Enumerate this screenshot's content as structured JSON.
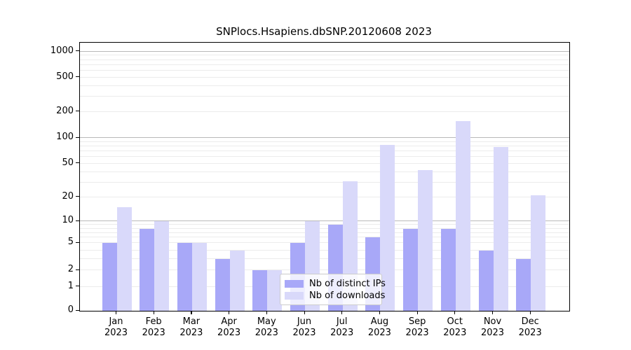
{
  "figure": {
    "title": "SNPlocs.Hsapiens.dbSNP.20120608 2023"
  },
  "chart_data": {
    "type": "bar",
    "title": "SNPlocs.Hsapiens.dbSNP.20120608 2023",
    "categories": [
      "Jan",
      "Feb",
      "Mar",
      "Apr",
      "May",
      "Jun",
      "Jul",
      "Aug",
      "Sep",
      "Oct",
      "Nov",
      "Dec"
    ],
    "category_year": "2023",
    "series": [
      {
        "name": "Nb of distinct IPs",
        "color": "#a8a8f8",
        "values": [
          5,
          8,
          5,
          3,
          2,
          5,
          9,
          6,
          8,
          8,
          4,
          3
        ]
      },
      {
        "name": "Nb of downloads",
        "color": "#d9d9fa",
        "values": [
          15,
          10,
          5,
          4,
          2,
          10,
          31,
          83,
          42,
          157,
          78,
          21
        ]
      }
    ],
    "yscale": "log1p",
    "ylim": [
      0,
      1300
    ],
    "yticks": [
      0,
      1,
      2,
      5,
      10,
      20,
      50,
      100,
      200,
      500,
      1000
    ],
    "ytick_labels": [
      "0",
      "1",
      "2",
      "5",
      "10",
      "20",
      "50",
      "100",
      "200",
      "500",
      "1000"
    ],
    "major_gridlines": [
      10,
      100,
      1000
    ],
    "minor_gridlines": [
      1,
      2,
      3,
      4,
      5,
      6,
      7,
      8,
      9,
      20,
      30,
      40,
      50,
      60,
      70,
      80,
      90,
      200,
      300,
      400,
      500,
      600,
      700,
      800,
      900
    ],
    "xlabel": "",
    "ylabel": "",
    "grid": true,
    "legend_position": "lower right inside",
    "colors": {
      "background": "#ffffff",
      "grid_minor": "#ececec",
      "grid_major": "#b9b9b9",
      "axis": "#000000",
      "legend_border": "#cccccc"
    }
  }
}
